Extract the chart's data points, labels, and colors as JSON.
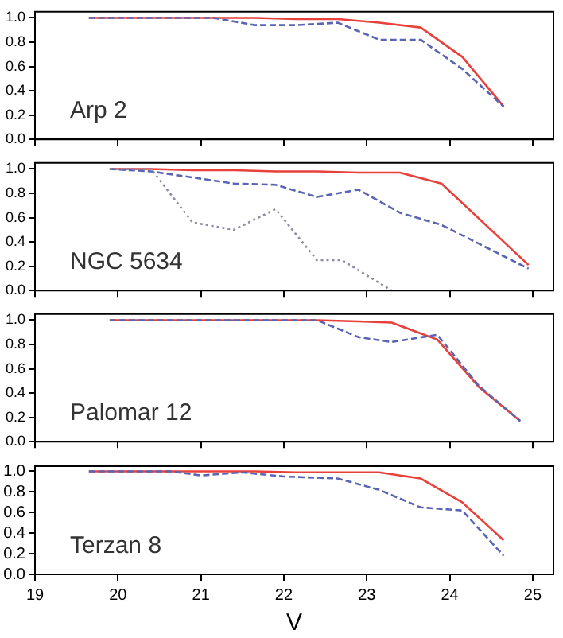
{
  "chart_data": [
    {
      "type": "line",
      "annotations": [
        "Arp 2"
      ],
      "xlim": [
        19,
        25.25
      ],
      "xticks": [
        19,
        20,
        21,
        22,
        23,
        24,
        25
      ],
      "ylim": [
        0,
        1.05
      ],
      "yticks": [
        {
          "value": 0,
          "label": "0.0"
        },
        {
          "value": 0.2,
          "label": "0.2"
        },
        {
          "value": 0.4,
          "label": "0.4"
        },
        {
          "value": 0.6,
          "label": "0.6"
        },
        {
          "value": 0.8,
          "label": "0.8"
        },
        {
          "value": 1,
          "label": "1.0"
        }
      ],
      "tick_labels": "y",
      "grid": false,
      "legend": false,
      "marker": "none",
      "series": [
        {
          "color": "#e8403a",
          "line_style": "solid",
          "x": [
            19.65,
            20.15,
            20.65,
            21.15,
            21.65,
            22.15,
            22.65,
            23.15,
            23.65,
            24.15,
            24.65
          ],
          "values": [
            1.0,
            1.0,
            1.0,
            1.0,
            1.0,
            0.99,
            0.99,
            0.96,
            0.92,
            0.68,
            0.27
          ]
        },
        {
          "color": "#5a64b4",
          "line_style": "dashed",
          "x": [
            19.65,
            20.15,
            20.65,
            21.15,
            21.65,
            22.15,
            22.65,
            23.15,
            23.65,
            24.15,
            24.65
          ],
          "values": [
            1.0,
            1.0,
            1.0,
            1.0,
            0.94,
            0.94,
            0.96,
            0.82,
            0.82,
            0.58,
            0.27
          ]
        }
      ]
    },
    {
      "type": "line",
      "annotations": [
        "NGC 5634"
      ],
      "xlim": [
        19,
        25.25
      ],
      "xticks": [
        19,
        20,
        21,
        22,
        23,
        24,
        25
      ],
      "ylim": [
        0,
        1.05
      ],
      "yticks": [
        {
          "value": 0,
          "label": "0.0"
        },
        {
          "value": 0.2,
          "label": "0.2"
        },
        {
          "value": 0.4,
          "label": "0.4"
        },
        {
          "value": 0.6,
          "label": "0.6"
        },
        {
          "value": 0.8,
          "label": "0.8"
        },
        {
          "value": 1,
          "label": "1.0"
        }
      ],
      "tick_labels": "y",
      "grid": false,
      "legend": false,
      "marker": "none",
      "series": [
        {
          "color": "#e8403a",
          "line_style": "solid",
          "x": [
            19.9,
            20.4,
            20.9,
            21.4,
            21.9,
            22.4,
            22.9,
            23.4,
            23.9,
            24.95
          ],
          "values": [
            1.0,
            1.0,
            0.99,
            0.99,
            0.98,
            0.98,
            0.97,
            0.97,
            0.88,
            0.21
          ]
        },
        {
          "color": "#5a64b4",
          "line_style": "dashed",
          "x": [
            19.9,
            20.4,
            20.9,
            21.4,
            21.9,
            22.4,
            22.9,
            23.4,
            23.9,
            24.95
          ],
          "values": [
            1.0,
            0.98,
            0.93,
            0.88,
            0.87,
            0.77,
            0.83,
            0.64,
            0.54,
            0.18
          ]
        },
        {
          "color": "#8c8ca8",
          "line_style": "dotted",
          "x": [
            19.9,
            20.4,
            20.9,
            21.4,
            21.9,
            22.4,
            22.7,
            23.3
          ],
          "values": [
            1.0,
            1.0,
            0.56,
            0.5,
            0.67,
            0.25,
            0.25,
            0.0
          ]
        }
      ]
    },
    {
      "type": "line",
      "annotations": [
        "Palomar 12"
      ],
      "xlim": [
        19,
        25.25
      ],
      "xticks": [
        19,
        20,
        21,
        22,
        23,
        24,
        25
      ],
      "ylim": [
        0,
        1.05
      ],
      "yticks": [
        {
          "value": 0,
          "label": "0.0"
        },
        {
          "value": 0.2,
          "label": "0.2"
        },
        {
          "value": 0.4,
          "label": "0.4"
        },
        {
          "value": 0.6,
          "label": "0.6"
        },
        {
          "value": 0.8,
          "label": "0.8"
        },
        {
          "value": 1,
          "label": "1.0"
        }
      ],
      "tick_labels": "y",
      "grid": false,
      "legend": false,
      "marker": "none",
      "series": [
        {
          "color": "#e8403a",
          "line_style": "solid",
          "x": [
            19.9,
            20.4,
            20.9,
            21.4,
            21.9,
            22.4,
            22.9,
            23.3,
            23.85,
            24.35,
            24.85
          ],
          "values": [
            1.0,
            1.0,
            1.0,
            1.0,
            1.0,
            1.0,
            0.99,
            0.98,
            0.84,
            0.45,
            0.17
          ]
        },
        {
          "color": "#5a64b4",
          "line_style": "dashed",
          "x": [
            19.9,
            20.4,
            20.9,
            21.4,
            21.9,
            22.4,
            22.9,
            23.3,
            23.85,
            24.35,
            24.85
          ],
          "values": [
            1.0,
            1.0,
            1.0,
            1.0,
            1.0,
            1.0,
            0.86,
            0.82,
            0.88,
            0.46,
            0.17
          ]
        }
      ]
    },
    {
      "type": "line",
      "annotations": [
        "Terzan 8"
      ],
      "xlabel": "V",
      "xlim": [
        19,
        25.25
      ],
      "xticks": [
        19,
        20,
        21,
        22,
        23,
        24,
        25
      ],
      "ylim": [
        0,
        1.05
      ],
      "yticks": [
        {
          "value": 0,
          "label": "0.0"
        },
        {
          "value": 0.2,
          "label": "0.2"
        },
        {
          "value": 0.4,
          "label": "0.4"
        },
        {
          "value": 0.6,
          "label": "0.6"
        },
        {
          "value": 0.8,
          "label": "0.8"
        },
        {
          "value": 1,
          "label": "1.0"
        }
      ],
      "grid": false,
      "legend": false,
      "marker": "none",
      "series": [
        {
          "color": "#e8403a",
          "line_style": "solid",
          "x": [
            19.65,
            20.15,
            20.65,
            21.15,
            21.65,
            22.15,
            22.65,
            23.15,
            23.65,
            24.15,
            24.65
          ],
          "values": [
            1.0,
            1.0,
            1.0,
            1.0,
            1.0,
            0.99,
            0.99,
            0.99,
            0.93,
            0.7,
            0.33
          ]
        },
        {
          "color": "#5a64b4",
          "line_style": "dashed",
          "x": [
            19.65,
            20.15,
            20.65,
            21.0,
            21.5,
            22.0,
            22.65,
            23.15,
            23.65,
            24.15,
            24.65
          ],
          "values": [
            1.0,
            1.0,
            1.0,
            0.96,
            0.99,
            0.95,
            0.93,
            0.82,
            0.65,
            0.62,
            0.18
          ]
        }
      ]
    }
  ]
}
